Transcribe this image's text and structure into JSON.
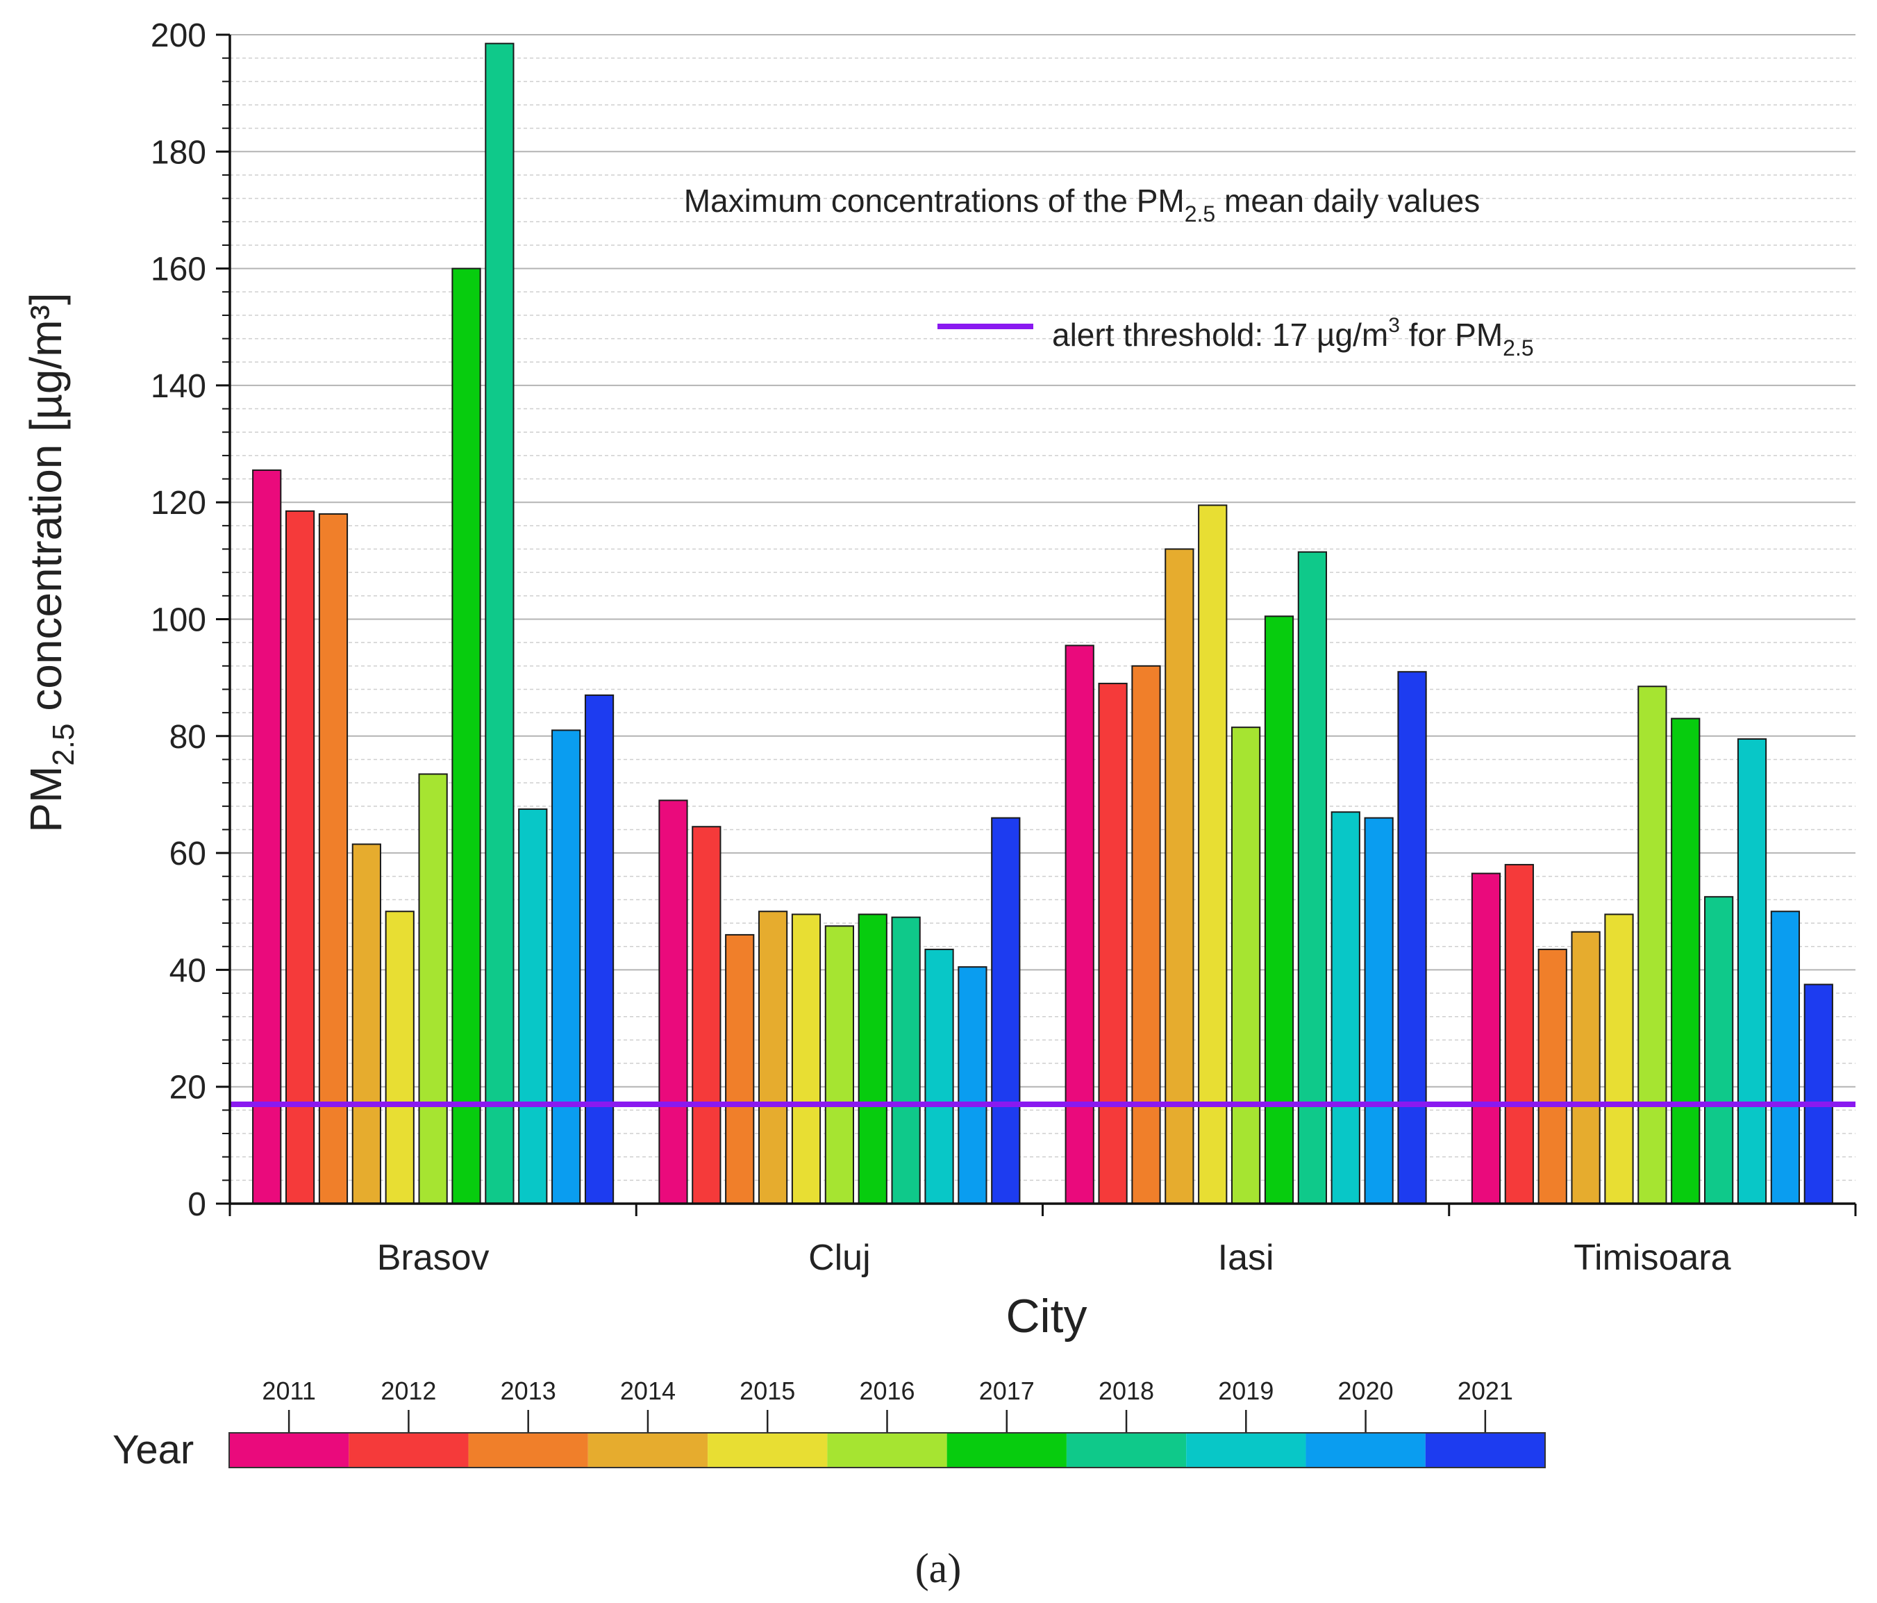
{
  "chart_data": {
    "type": "bar",
    "title": "Maximum concentrations of the PM2.5 mean daily values",
    "xlabel": "City",
    "ylabel": "PM2.5 concentration [µg/m³]",
    "ylim": [
      0,
      200
    ],
    "yticks": [
      0,
      20,
      40,
      60,
      80,
      100,
      120,
      140,
      160,
      180,
      200
    ],
    "grid": true,
    "categories": [
      "Brasov",
      "Cluj",
      "Iasi",
      "Timisoara"
    ],
    "series": [
      {
        "name": "2011",
        "color": "#ea0a7c",
        "values": [
          125.5,
          69,
          95.5,
          56.5
        ]
      },
      {
        "name": "2012",
        "color": "#f53a3a",
        "values": [
          118.5,
          64.5,
          89,
          58
        ]
      },
      {
        "name": "2013",
        "color": "#f07f2a",
        "values": [
          118,
          46,
          92,
          43.5
        ]
      },
      {
        "name": "2014",
        "color": "#e6ac2e",
        "values": [
          61.5,
          50,
          112,
          46.5
        ]
      },
      {
        "name": "2015",
        "color": "#e8de33",
        "values": [
          50,
          49.5,
          119.5,
          49.5
        ]
      },
      {
        "name": "2016",
        "color": "#a6e431",
        "values": [
          73.5,
          47.5,
          81.5,
          88.5
        ]
      },
      {
        "name": "2017",
        "color": "#07cc0e",
        "values": [
          160,
          49.5,
          100.5,
          83
        ]
      },
      {
        "name": "2018",
        "color": "#0fc98a",
        "values": [
          198.5,
          49,
          111.5,
          52.5
        ]
      },
      {
        "name": "2019",
        "color": "#08c7c7",
        "values": [
          67.5,
          43.5,
          67,
          79.5
        ]
      },
      {
        "name": "2020",
        "color": "#0a9df0",
        "values": [
          81,
          40.5,
          66,
          50
        ]
      },
      {
        "name": "2021",
        "color": "#1d3cf0",
        "values": [
          87,
          66,
          91,
          37.5
        ]
      }
    ],
    "threshold": {
      "value": 17,
      "color": "#8a19f0",
      "label_main": "alert threshold: 17 µg/m",
      "label_sup": "3",
      "label_suffix": " for PM",
      "label_sub": "2.5"
    },
    "annotation": {
      "main": "Maximum concentrations of the PM",
      "sub": "2.5",
      "suffix": " mean daily values"
    },
    "ylabel_parts": {
      "main": "PM",
      "sub": "2.5",
      "suffix": " concentration [µg/m³]"
    },
    "colorbar": {
      "label": "Year",
      "years": [
        "2011",
        "2012",
        "2013",
        "2014",
        "2015",
        "2016",
        "2017",
        "2018",
        "2019",
        "2020",
        "2021"
      ]
    },
    "panel_label": "(a)"
  }
}
